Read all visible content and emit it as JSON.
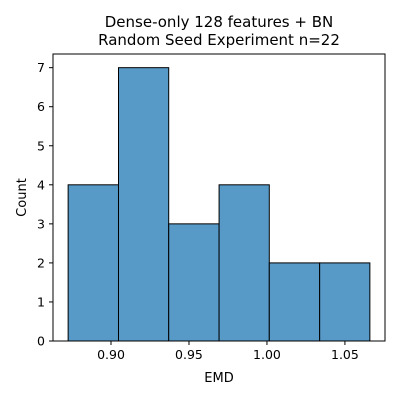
{
  "chart_data": {
    "type": "bar",
    "title": [
      "Dense-only 128 features + BN",
      "Random Seed Experiment n=22"
    ],
    "xlabel": "EMD",
    "ylabel": "Count",
    "bins": [
      {
        "x0": 0.8725,
        "x1": 0.9048,
        "count": 4
      },
      {
        "x0": 0.9048,
        "x1": 0.937,
        "count": 7
      },
      {
        "x0": 0.937,
        "x1": 0.9693,
        "count": 3
      },
      {
        "x0": 0.9693,
        "x1": 1.0015,
        "count": 4
      },
      {
        "x0": 1.0015,
        "x1": 1.0338,
        "count": 2
      },
      {
        "x0": 1.0338,
        "x1": 1.066,
        "count": 2
      }
    ],
    "xlim": [
      0.8628,
      1.0757
    ],
    "ylim": [
      0,
      7.35
    ],
    "xticks": [
      0.9,
      0.95,
      1.0,
      1.05
    ],
    "xtick_labels": [
      "0.90",
      "0.95",
      "1.00",
      "1.05"
    ],
    "yticks": [
      0,
      1,
      2,
      3,
      4,
      5,
      6,
      7
    ],
    "ytick_labels": [
      "0",
      "1",
      "2",
      "3",
      "4",
      "5",
      "6",
      "7"
    ],
    "bar_color": "#5799c7",
    "edge_color": "#000000",
    "grid": false
  }
}
